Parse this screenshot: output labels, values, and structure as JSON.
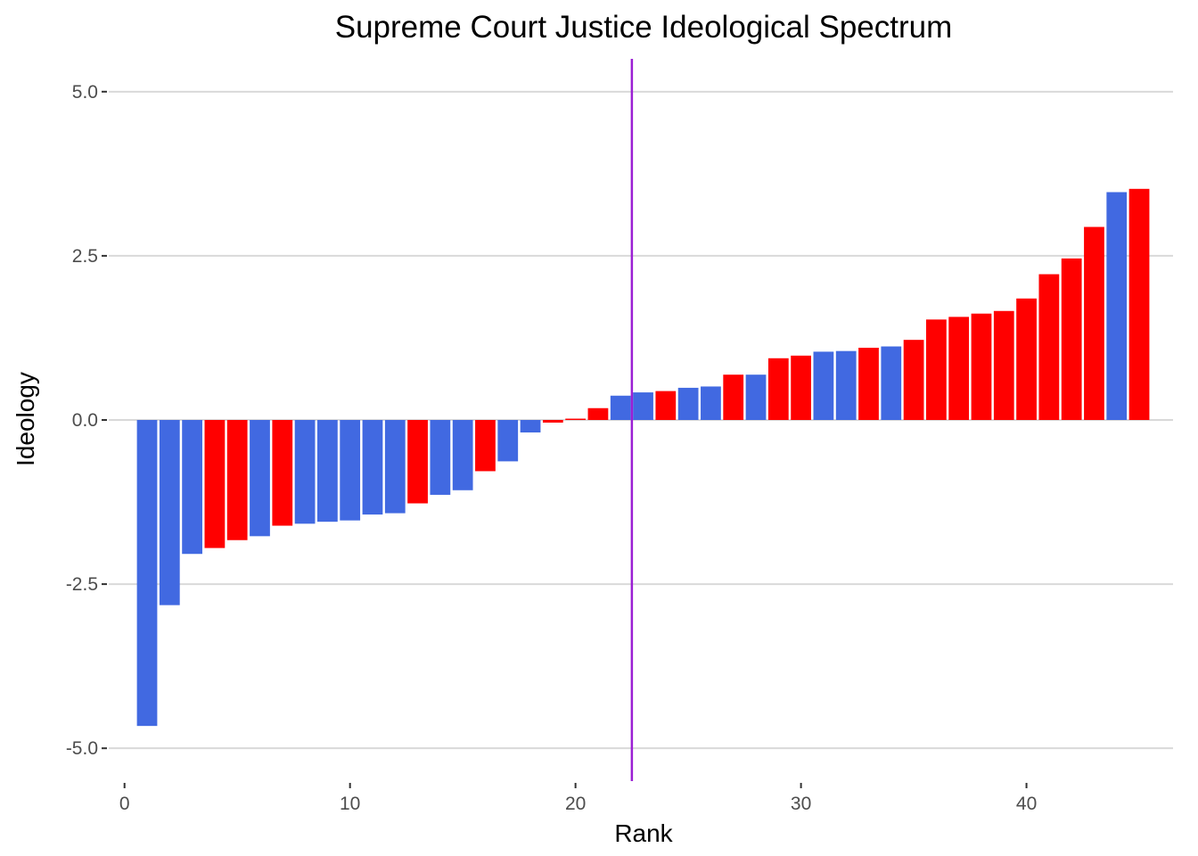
{
  "chart_data": {
    "type": "bar",
    "title": "Supreme Court Justice Ideological Spectrum",
    "xlabel": "Rank",
    "ylabel": "Ideology",
    "xlim": [
      -0.7,
      46.5
    ],
    "ylim": [
      -5.5,
      5.5
    ],
    "x_ticks": [
      0,
      10,
      20,
      30,
      40
    ],
    "y_ticks": [
      5.0,
      2.5,
      0.0,
      -2.5,
      -5.0
    ],
    "y_tick_labels": [
      "5.0",
      "2.5",
      "0.0",
      "-2.5",
      "-5.0"
    ],
    "grid": "horizontal",
    "legend": "none",
    "median_line_x": 22.5,
    "median_line_color": "#9b1fd4",
    "color_map": {
      "blue": "#4169e1",
      "red": "#ff0000"
    },
    "bars": [
      {
        "x": 1,
        "value": -4.66,
        "color": "blue"
      },
      {
        "x": 2,
        "value": -2.82,
        "color": "blue"
      },
      {
        "x": 3,
        "value": -2.04,
        "color": "blue"
      },
      {
        "x": 4,
        "value": -1.95,
        "color": "red"
      },
      {
        "x": 5,
        "value": -1.83,
        "color": "red"
      },
      {
        "x": 6,
        "value": -1.77,
        "color": "blue"
      },
      {
        "x": 7,
        "value": -1.61,
        "color": "red"
      },
      {
        "x": 8,
        "value": -1.58,
        "color": "blue"
      },
      {
        "x": 9,
        "value": -1.55,
        "color": "blue"
      },
      {
        "x": 10,
        "value": -1.53,
        "color": "blue"
      },
      {
        "x": 11,
        "value": -1.44,
        "color": "blue"
      },
      {
        "x": 12,
        "value": -1.42,
        "color": "blue"
      },
      {
        "x": 13,
        "value": -1.27,
        "color": "red"
      },
      {
        "x": 14,
        "value": -1.14,
        "color": "blue"
      },
      {
        "x": 15,
        "value": -1.07,
        "color": "blue"
      },
      {
        "x": 16,
        "value": -0.78,
        "color": "red"
      },
      {
        "x": 17,
        "value": -0.63,
        "color": "blue"
      },
      {
        "x": 18,
        "value": -0.19,
        "color": "blue"
      },
      {
        "x": 19,
        "value": -0.04,
        "color": "red"
      },
      {
        "x": 20,
        "value": 0.02,
        "color": "red"
      },
      {
        "x": 21,
        "value": 0.18,
        "color": "red"
      },
      {
        "x": 22,
        "value": 0.37,
        "color": "blue"
      },
      {
        "x": 23,
        "value": 0.42,
        "color": "blue"
      },
      {
        "x": 24,
        "value": 0.44,
        "color": "red"
      },
      {
        "x": 25,
        "value": 0.49,
        "color": "blue"
      },
      {
        "x": 26,
        "value": 0.51,
        "color": "blue"
      },
      {
        "x": 27,
        "value": 0.69,
        "color": "red"
      },
      {
        "x": 28,
        "value": 0.69,
        "color": "blue"
      },
      {
        "x": 29,
        "value": 0.94,
        "color": "red"
      },
      {
        "x": 30,
        "value": 0.98,
        "color": "red"
      },
      {
        "x": 31,
        "value": 1.04,
        "color": "blue"
      },
      {
        "x": 32,
        "value": 1.05,
        "color": "blue"
      },
      {
        "x": 33,
        "value": 1.1,
        "color": "red"
      },
      {
        "x": 34,
        "value": 1.12,
        "color": "blue"
      },
      {
        "x": 35,
        "value": 1.22,
        "color": "red"
      },
      {
        "x": 36,
        "value": 1.53,
        "color": "red"
      },
      {
        "x": 37,
        "value": 1.57,
        "color": "red"
      },
      {
        "x": 38,
        "value": 1.62,
        "color": "red"
      },
      {
        "x": 39,
        "value": 1.66,
        "color": "red"
      },
      {
        "x": 40,
        "value": 1.85,
        "color": "red"
      },
      {
        "x": 41,
        "value": 2.22,
        "color": "red"
      },
      {
        "x": 42,
        "value": 2.46,
        "color": "red"
      },
      {
        "x": 43,
        "value": 2.94,
        "color": "red"
      },
      {
        "x": 44,
        "value": 3.47,
        "color": "blue"
      },
      {
        "x": 45,
        "value": 3.52,
        "color": "red"
      }
    ]
  }
}
